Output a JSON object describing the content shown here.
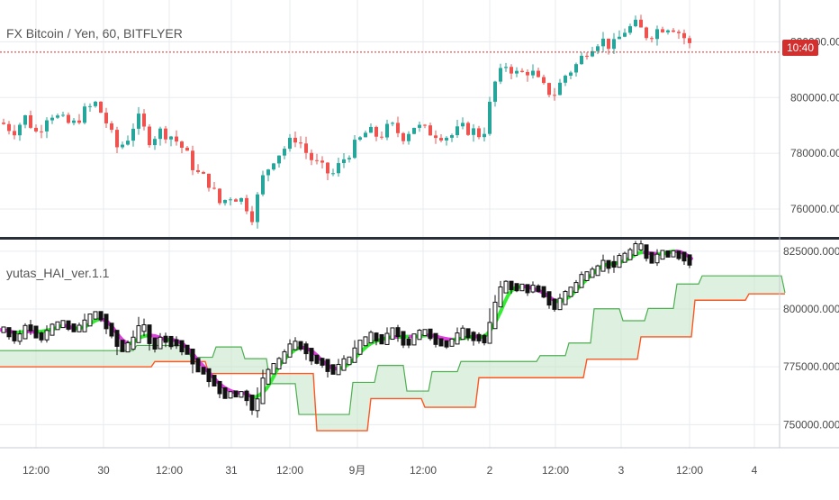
{
  "header": {
    "symbol_title": "FX Bitcoin / Yen, 60, BITFLYER",
    "indicator_title": "yutas_HAI_ver.1.1",
    "last_price_label": "10:40"
  },
  "colors": {
    "bull": "#26a69a",
    "bear": "#ef5350",
    "price_line": "#d32f2f",
    "tenkan_up": "#33ee33",
    "tenkan_down": "#e040e0",
    "senkou_a": "#4caf50",
    "senkou_b": "#ff5722",
    "cloud_fill": "#c8e6c9",
    "grid": "#e8ebef",
    "axis_text": "#4a4a4a"
  },
  "chart_data": [
    {
      "type": "candlestick",
      "title": "FX Bitcoin / Yen, 60, BITFLYER",
      "ylim": [
        750000,
        835000
      ],
      "y_ticks": [
        {
          "value": 760000,
          "label": "760000.00"
        },
        {
          "value": 780000,
          "label": "780000.00"
        },
        {
          "value": 800000,
          "label": "800000.00"
        },
        {
          "value": 820000,
          "label": "820000.00"
        }
      ],
      "current_price": 816300,
      "last_label": "10:40",
      "close_path": [
        [
          0,
          791000
        ],
        [
          10,
          788000
        ],
        [
          20,
          793000
        ],
        [
          30,
          787000
        ],
        [
          40,
          795000
        ],
        [
          50,
          792000
        ],
        [
          60,
          790000
        ],
        [
          70,
          795000
        ],
        [
          80,
          798000
        ],
        [
          90,
          790000
        ],
        [
          97,
          782000
        ],
        [
          105,
          784000
        ],
        [
          115,
          793000
        ],
        [
          125,
          785000
        ],
        [
          135,
          788000
        ],
        [
          145,
          786000
        ],
        [
          155,
          781000
        ],
        [
          165,
          773000
        ],
        [
          175,
          770000
        ],
        [
          185,
          762000
        ],
        [
          195,
          765000
        ],
        [
          205,
          763000
        ],
        [
          213,
          757000
        ],
        [
          220,
          770000
        ],
        [
          230,
          778000
        ],
        [
          240,
          782000
        ],
        [
          250,
          786000
        ],
        [
          260,
          779000
        ],
        [
          270,
          775000
        ],
        [
          280,
          772000
        ],
        [
          290,
          778000
        ],
        [
          300,
          783000
        ],
        [
          310,
          788000
        ],
        [
          320,
          786000
        ],
        [
          330,
          790000
        ],
        [
          340,
          786000
        ],
        [
          350,
          790000
        ],
        [
          360,
          788000
        ],
        [
          370,
          787000
        ],
        [
          380,
          786000
        ],
        [
          390,
          789000
        ],
        [
          400,
          788000
        ],
        [
          408,
          786000
        ],
        [
          418,
          805000
        ],
        [
          428,
          812000
        ],
        [
          438,
          808000
        ],
        [
          448,
          810000
        ],
        [
          458,
          804000
        ],
        [
          468,
          801000
        ],
        [
          478,
          808000
        ],
        [
          488,
          812000
        ],
        [
          498,
          818000
        ],
        [
          508,
          821000
        ],
        [
          518,
          818000
        ],
        [
          528,
          824000
        ],
        [
          538,
          826000
        ],
        [
          548,
          822000
        ],
        [
          558,
          825000
        ],
        [
          568,
          826000
        ],
        [
          578,
          822000
        ],
        [
          588,
          816000
        ]
      ],
      "x_ticks": [
        {
          "pos": 0.0,
          "label": "12:00"
        },
        {
          "pos": 0.105,
          "label": "30"
        },
        {
          "pos": 0.211,
          "label": "12:00"
        },
        {
          "pos": 0.316,
          "label": "31"
        },
        {
          "pos": 0.421,
          "label": "12:00"
        },
        {
          "pos": 0.526,
          "label": "9月"
        },
        {
          "pos": 0.631,
          "label": "12:00"
        },
        {
          "pos": 0.737,
          "label": "2"
        },
        {
          "pos": 0.842,
          "label": "12:00"
        },
        {
          "pos": 0.947,
          "label": "3"
        }
      ]
    },
    {
      "type": "line",
      "title": "yutas_HAI_ver.1.1",
      "ylim": [
        740000,
        830000
      ],
      "y_ticks": [
        {
          "value": 750000,
          "label": "750000.0000"
        },
        {
          "value": 775000,
          "label": "775000.0000"
        },
        {
          "value": 800000,
          "label": "800000.0000"
        },
        {
          "value": 825000,
          "label": "825000.0000"
        }
      ],
      "x_axis_labels": [
        "12:00",
        "30",
        "12:00",
        "31",
        "12:00",
        "9月",
        "12:00",
        "2",
        "12:00",
        "3",
        "12:00",
        "4"
      ],
      "series": [
        {
          "name": "",
          "color": "#33ee33"
        },
        {
          "name": "",
          "color": "#4caf50"
        },
        {
          "name": "",
          "color": "#ff5722"
        }
      ]
    }
  ]
}
